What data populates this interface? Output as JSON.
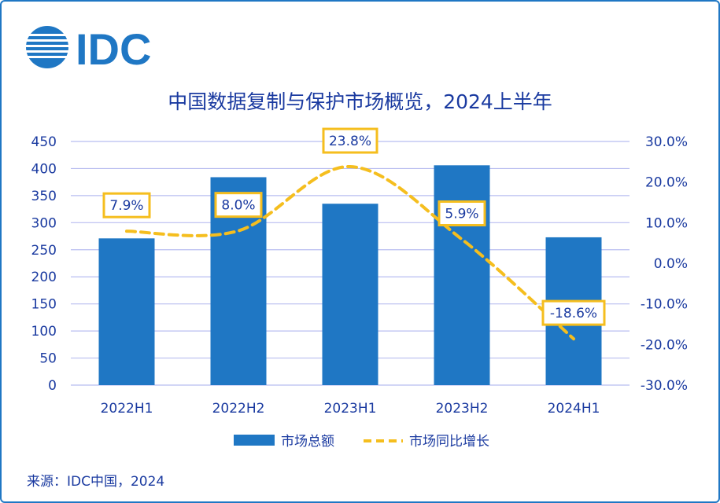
{
  "logo": {
    "text": "IDC"
  },
  "source": "来源：IDC中国，2024",
  "colors": {
    "bar": "#1f77c4",
    "line": "#f5be1e",
    "text": "#1a3aa0",
    "grid": "#b8bdf0",
    "frame": "#1f77c4"
  },
  "chart_data": {
    "type": "bar",
    "title": "中国数据复制与保护市场概览，2024上半年",
    "categories": [
      "2022H1",
      "2022H2",
      "2023H1",
      "2023H2",
      "2024H1"
    ],
    "series": [
      {
        "name": "市场总额",
        "type": "bar",
        "axis": "left",
        "values": [
          271,
          384,
          335,
          406,
          273
        ]
      },
      {
        "name": "市场同比增长",
        "type": "line",
        "style": "dashed",
        "axis": "right",
        "values": [
          7.9,
          8.0,
          23.8,
          5.9,
          -18.6
        ],
        "labels": [
          "7.9%",
          "8.0%",
          "23.8%",
          "5.9%",
          "-18.6%"
        ]
      }
    ],
    "y_left": {
      "min": 0,
      "max": 450,
      "step": 50,
      "ticks": [
        "0",
        "50",
        "100",
        "150",
        "200",
        "250",
        "300",
        "350",
        "400",
        "450"
      ]
    },
    "y_right": {
      "min": -30,
      "max": 30,
      "step": 10,
      "ticks": [
        "-30.0%",
        "-20.0%",
        "-10.0%",
        "0.0%",
        "10.0%",
        "20.0%",
        "30.0%"
      ]
    },
    "legend_position": "bottom",
    "grid": true
  }
}
